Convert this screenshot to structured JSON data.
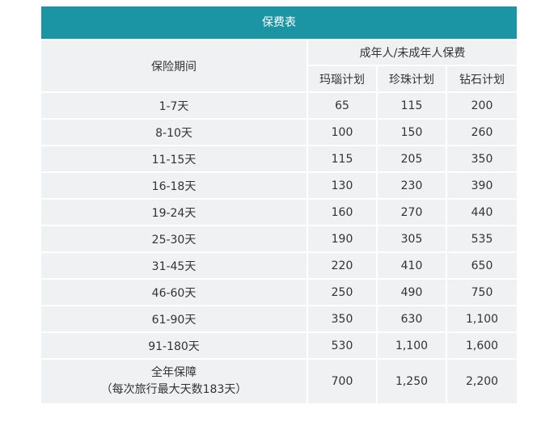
{
  "title": "保费表",
  "header": {
    "period": "保险期间",
    "group": "成年人/未成年人保费",
    "plans": [
      "玛瑙计划",
      "珍珠计划",
      "钻石计划"
    ]
  },
  "rows": [
    {
      "period": "1-7天",
      "values": [
        "65",
        "115",
        "200"
      ]
    },
    {
      "period": "8-10天",
      "values": [
        "100",
        "150",
        "260"
      ]
    },
    {
      "period": "11-15天",
      "values": [
        "115",
        "205",
        "350"
      ]
    },
    {
      "period": "16-18天",
      "values": [
        "130",
        "230",
        "390"
      ]
    },
    {
      "period": "19-24天",
      "values": [
        "160",
        "270",
        "440"
      ]
    },
    {
      "period": "25-30天",
      "values": [
        "190",
        "305",
        "535"
      ]
    },
    {
      "period": "31-45天",
      "values": [
        "220",
        "410",
        "650"
      ]
    },
    {
      "period": "46-60天",
      "values": [
        "250",
        "490",
        "750"
      ]
    },
    {
      "period": "61-90天",
      "values": [
        "350",
        "630",
        "1,100"
      ]
    },
    {
      "period": "91-180天",
      "values": [
        "530",
        "1,100",
        "1,600"
      ]
    }
  ],
  "annual": {
    "line1": "全年保障",
    "line2": "（每次旅行最大天数183天）",
    "values": [
      "700",
      "1,250",
      "2,200"
    ]
  },
  "colors": {
    "header_bar": "#1b95a4",
    "cell_bg": "#f0f1f2",
    "text": "#333333"
  }
}
